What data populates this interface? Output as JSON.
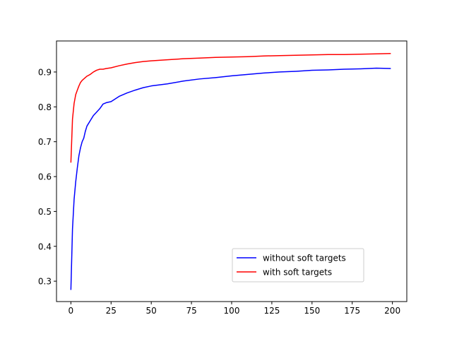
{
  "chart_data": {
    "type": "line",
    "title": "",
    "xlabel": "",
    "ylabel": "",
    "xlim": [
      -8.95,
      208.95
    ],
    "ylim": [
      0.2415,
      0.989
    ],
    "x_ticks": [
      0,
      25,
      50,
      75,
      100,
      125,
      150,
      175,
      200
    ],
    "x_tick_labels": [
      "0",
      "25",
      "50",
      "75",
      "100",
      "125",
      "150",
      "175",
      "200"
    ],
    "y_ticks": [
      0.3,
      0.4,
      0.5,
      0.6,
      0.7,
      0.8,
      0.9
    ],
    "y_tick_labels": [
      "0.3",
      "0.4",
      "0.5",
      "0.6",
      "0.7",
      "0.8",
      "0.9"
    ],
    "grid": false,
    "legend_position": "lower-right",
    "x": [
      0,
      1,
      2,
      3,
      4,
      5,
      6,
      7,
      8,
      9,
      10,
      12,
      14,
      16,
      18,
      20,
      22,
      25,
      30,
      35,
      40,
      45,
      50,
      60,
      70,
      80,
      90,
      100,
      110,
      120,
      130,
      140,
      150,
      160,
      170,
      180,
      190,
      199
    ],
    "series": [
      {
        "name": "without soft targets",
        "color": "#0000ff",
        "values": [
          0.275,
          0.45,
          0.535,
          0.585,
          0.625,
          0.66,
          0.683,
          0.7,
          0.71,
          0.73,
          0.745,
          0.76,
          0.775,
          0.785,
          0.795,
          0.808,
          0.812,
          0.815,
          0.83,
          0.84,
          0.848,
          0.855,
          0.86,
          0.866,
          0.874,
          0.88,
          0.884,
          0.889,
          0.893,
          0.897,
          0.9,
          0.902,
          0.905,
          0.906,
          0.908,
          0.909,
          0.911,
          0.91
        ]
      },
      {
        "name": "with soft targets",
        "color": "#ff0000",
        "values": [
          0.64,
          0.765,
          0.81,
          0.835,
          0.848,
          0.86,
          0.87,
          0.876,
          0.88,
          0.884,
          0.888,
          0.893,
          0.9,
          0.905,
          0.908,
          0.908,
          0.91,
          0.912,
          0.918,
          0.923,
          0.927,
          0.93,
          0.932,
          0.935,
          0.938,
          0.94,
          0.942,
          0.943,
          0.944,
          0.946,
          0.947,
          0.948,
          0.949,
          0.95,
          0.95,
          0.951,
          0.952,
          0.953
        ]
      }
    ]
  }
}
